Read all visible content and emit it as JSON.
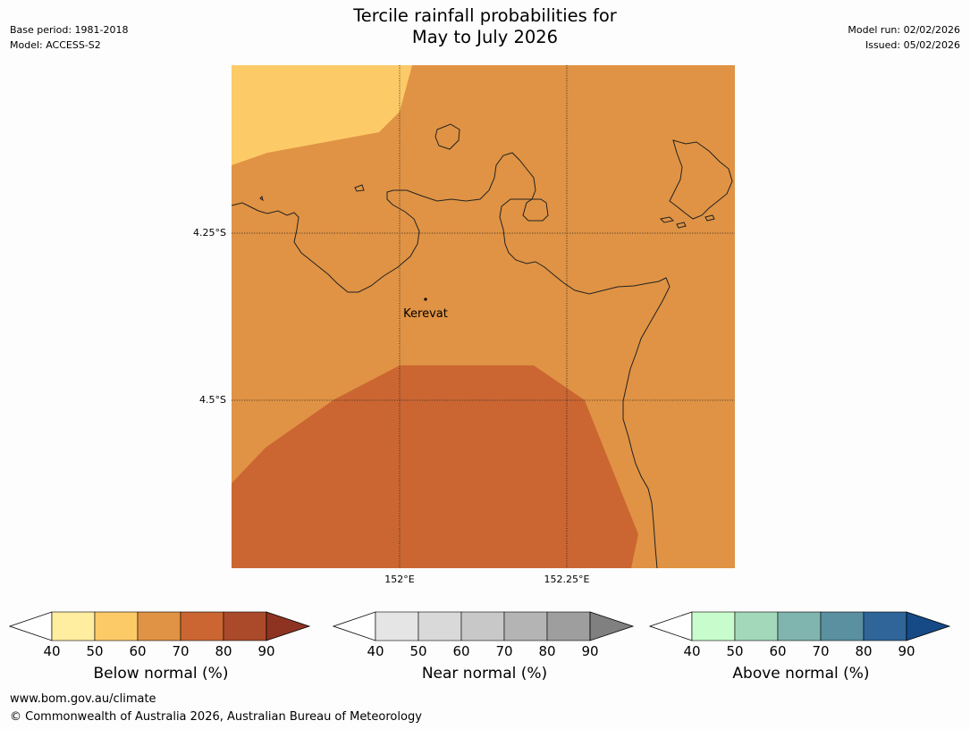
{
  "header": {
    "title_line1": "Tercile rainfall probabilities for",
    "title_line2": "May to July 2026",
    "base_period": "Base period: 1981-2018",
    "model": "Model: ACCESS-S2",
    "model_run": "Model run: 02/02/2026",
    "issued": "Issued: 05/02/2026"
  },
  "map": {
    "place_label": "Kerevat",
    "lat_labels": [
      "4.25°S",
      "4.5°S"
    ],
    "lon_labels": [
      "152°E",
      "152.25°E"
    ],
    "region_colors": {
      "40-50": "#fdca68",
      "50-60": "#e09344",
      "60-70": "#cb6632"
    }
  },
  "colorbars": [
    {
      "label": "Below normal (%)",
      "ticks": [
        "40",
        "50",
        "60",
        "70",
        "80",
        "90"
      ],
      "colors": [
        "#ffeda0",
        "#fdca68",
        "#e09344",
        "#cb6632",
        "#ab4a2a"
      ],
      "under_color": "#ffffff",
      "over_color": "#8e3322"
    },
    {
      "label": "Near normal (%)",
      "ticks": [
        "40",
        "50",
        "60",
        "70",
        "80",
        "90"
      ],
      "colors": [
        "#e5e5e5",
        "#d9d9d9",
        "#c8c8c8",
        "#b4b4b4",
        "#9e9e9e"
      ],
      "under_color": "#ffffff",
      "over_color": "#808080"
    },
    {
      "label": "Above normal (%)",
      "ticks": [
        "40",
        "50",
        "60",
        "70",
        "80",
        "90"
      ],
      "colors": [
        "#c8fccc",
        "#a3d8bb",
        "#80b4ae",
        "#5a90a0",
        "#2f6598"
      ],
      "under_color": "#ffffff",
      "over_color": "#164a87"
    }
  ],
  "footer": {
    "website": "www.bom.gov.au/climate",
    "copyright": "© Commonwealth of Australia 2026, Australian Bureau of Meteorology"
  }
}
